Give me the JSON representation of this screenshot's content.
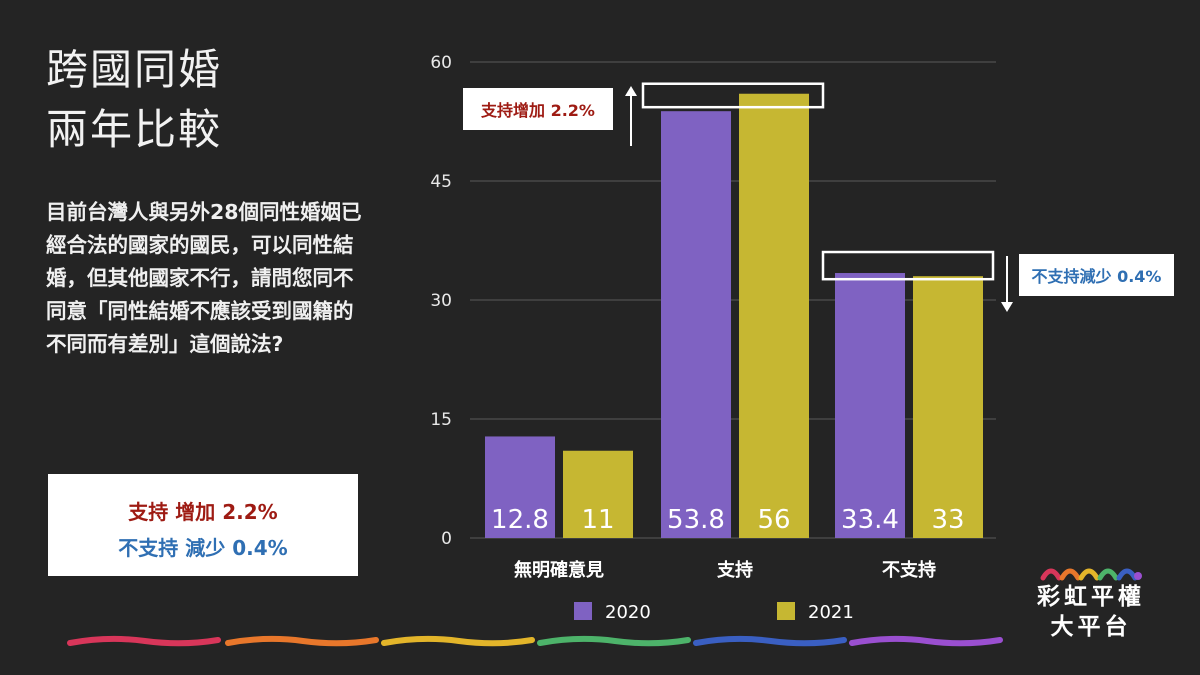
{
  "title": {
    "line1": "跨國同婚",
    "line2": "兩年比較"
  },
  "question": "目前台灣人與另外28個同性婚姻已經合法的國家的國民，可以同性結婚，但其他國家不行，請問您同不同意「同性結婚不應該受到國籍的不同而有差別」這個說法?",
  "summary": {
    "support": "支持 增加 2.2%",
    "oppose": "不支持 減少 0.4%"
  },
  "annotations": {
    "support_change": "支持增加 2.2%",
    "oppose_change": "不支持減少 0.4%"
  },
  "brand": {
    "line1": "彩虹平權",
    "line2": "大平台"
  },
  "colors": {
    "series2020": "#7f62c2",
    "series2021": "#c6b732",
    "support_text": "#9e1b13",
    "oppose_text": "#2f6fb3",
    "rainbow": [
      "#d8365a",
      "#e8772b",
      "#e3b52a",
      "#4db36a",
      "#3a5fc2",
      "#9a4fd0"
    ]
  },
  "chart_data": {
    "type": "bar",
    "categories": [
      "無明確意見",
      "支持",
      "不支持"
    ],
    "series": [
      {
        "name": "2020",
        "values": [
          12.8,
          53.8,
          33.4
        ]
      },
      {
        "name": "2021",
        "values": [
          11,
          56,
          33
        ]
      }
    ],
    "ylim": [
      0,
      60
    ],
    "yticks": [
      0,
      15,
      30,
      45,
      60
    ],
    "grid": true,
    "legend": "bottom"
  }
}
